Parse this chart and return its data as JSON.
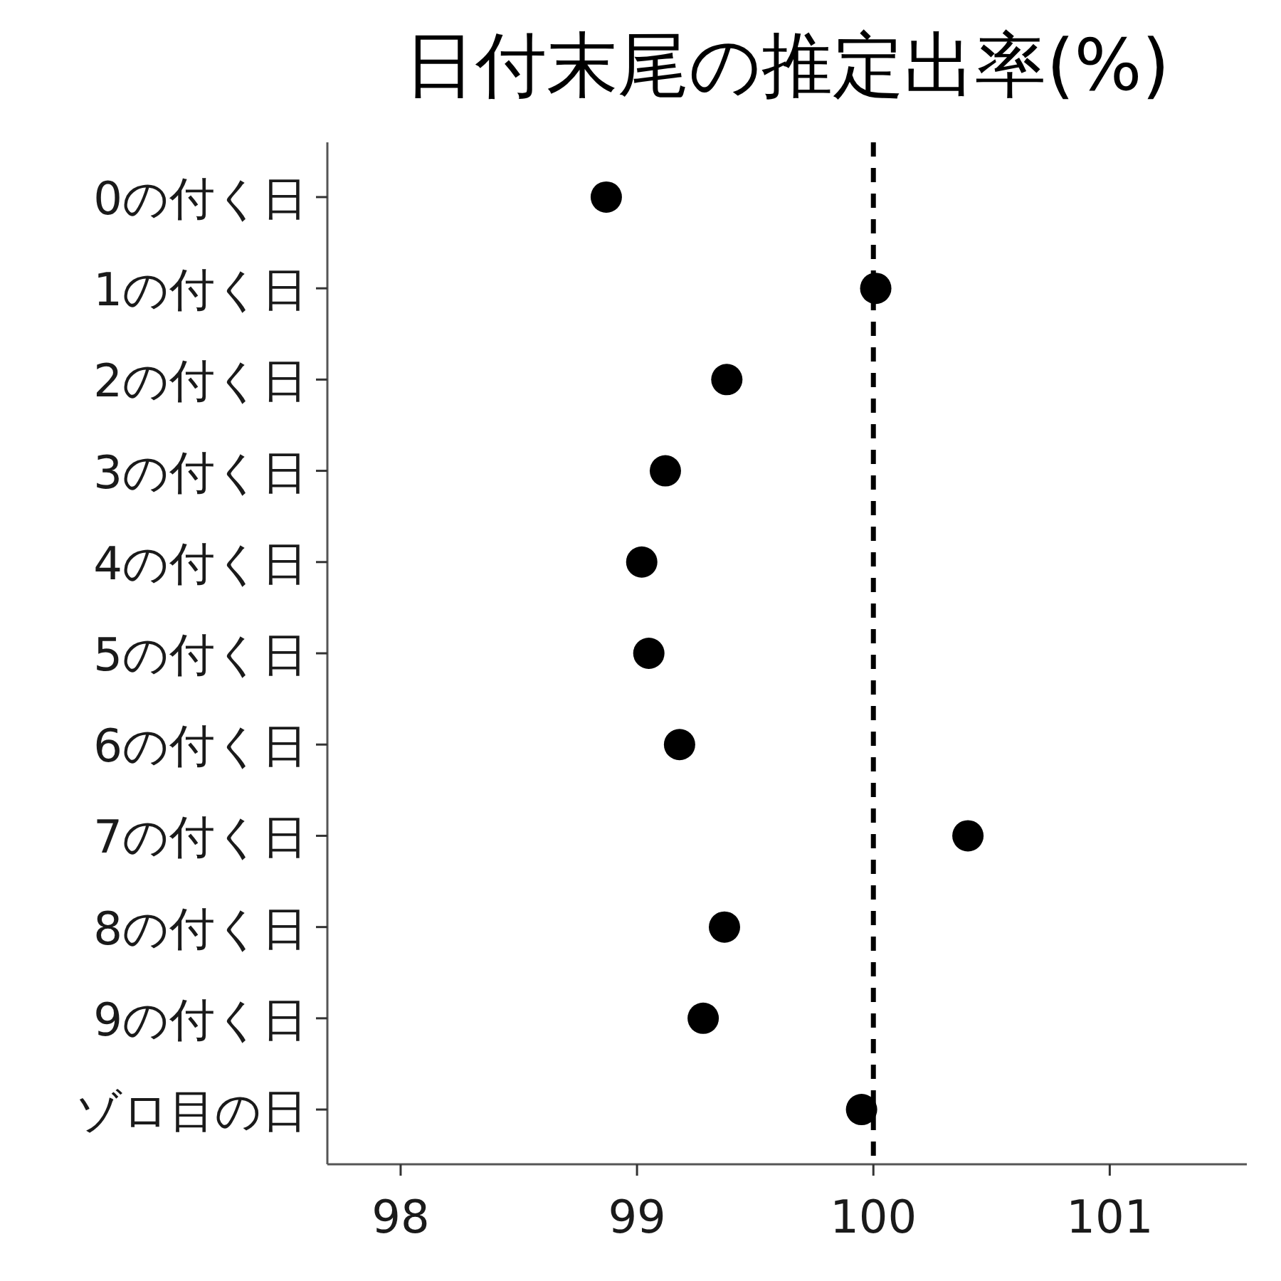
{
  "chart_data": {
    "type": "scatter",
    "title": "日付末尾の推定出率(%)",
    "orientation": "horizontal",
    "categories": [
      "0の付く日",
      "1の付く日",
      "2の付く日",
      "3の付く日",
      "4の付く日",
      "5の付く日",
      "6の付く日",
      "7の付く日",
      "8の付く日",
      "9の付く日",
      "ゾロ目の日"
    ],
    "values": [
      98.87,
      100.01,
      99.38,
      99.12,
      99.02,
      99.05,
      99.18,
      100.4,
      99.37,
      99.28,
      99.95
    ],
    "color": "#000000",
    "marker": "circle",
    "xlim": [
      97.69,
      101.58
    ],
    "xticks": [
      98,
      99,
      100,
      101
    ],
    "ref_lines": [
      {
        "axis": "x",
        "value": 100,
        "line_style": "dashed",
        "color": "#000000"
      }
    ]
  }
}
